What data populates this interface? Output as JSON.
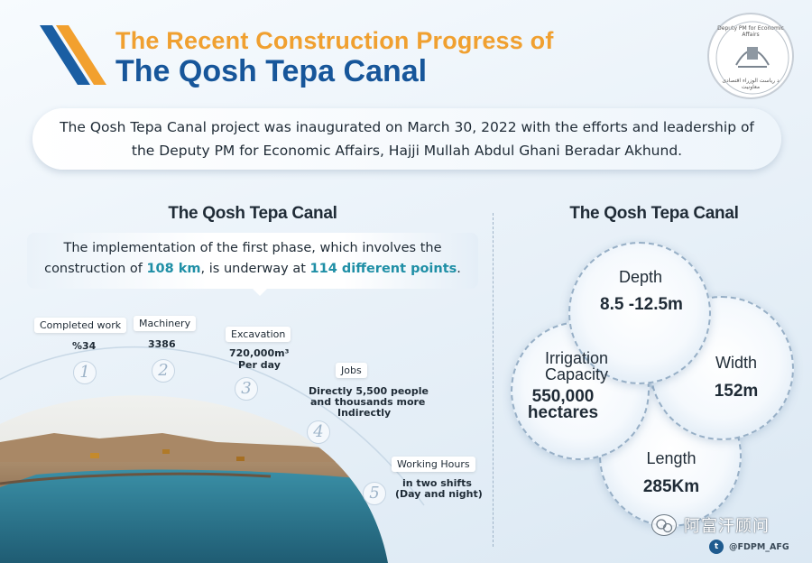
{
  "header": {
    "title_line1": "The Recent Construction Progress of",
    "title_line2": "The Qosh Tepa Canal",
    "seal_top": "Deputy PM for Economic Affairs",
    "seal_bottom": "د ریاست الوزراء اقتصادی معاونیت"
  },
  "intro": {
    "text": "The Qosh Tepa Canal project was inaugurated on March 30, 2022 with the efforts and leadership of the Deputy PM for Economic Affairs, Hajji Mullah Abdul Ghani Beradar Akhund."
  },
  "left": {
    "heading": "The Qosh Tepa Canal",
    "phase": {
      "text_before": "The implementation of the first phase, which involves the construction of ",
      "highlight_1": "108 km",
      "text_mid": ", is underway at ",
      "highlight_2": "114 different points",
      "text_after": "."
    },
    "timeline": [
      {
        "num": "1",
        "label": "Completed work",
        "value": "%34"
      },
      {
        "num": "2",
        "label": "Machinery",
        "value": "3386"
      },
      {
        "num": "3",
        "label": "Excavation",
        "value": "720,000m³",
        "value2": "Per day"
      },
      {
        "num": "4",
        "label": "Jobs",
        "value": "Directly 5,500 people",
        "value2": "and thousands more",
        "value3": "Indirectly"
      },
      {
        "num": "5",
        "label": "Working Hours",
        "value": "in two shifts",
        "value2": "(Day and night)"
      }
    ]
  },
  "right": {
    "heading": "The Qosh Tepa Canal",
    "circles": [
      {
        "label": "Depth",
        "value": "8.5 -12.5m"
      },
      {
        "label": "Width",
        "value": "152m"
      },
      {
        "label": "Irrigation",
        "label2": "Capacity",
        "value": "550,000",
        "value2": "hectares"
      },
      {
        "label": "Length",
        "value": "285Km"
      }
    ]
  },
  "footer": {
    "watermark": "阿富汗顾问",
    "twitter_handle": "@FDPM_AFG",
    "wechat_icon": "wechat-icon",
    "twitter_icon": "twitter-icon"
  },
  "colors": {
    "title_orange": "#f0a030",
    "title_blue": "#17569a",
    "highlight_teal": "#1f8fa6",
    "stripe_orange": "#f2a02e",
    "stripe_blue": "#1a5ea3"
  }
}
